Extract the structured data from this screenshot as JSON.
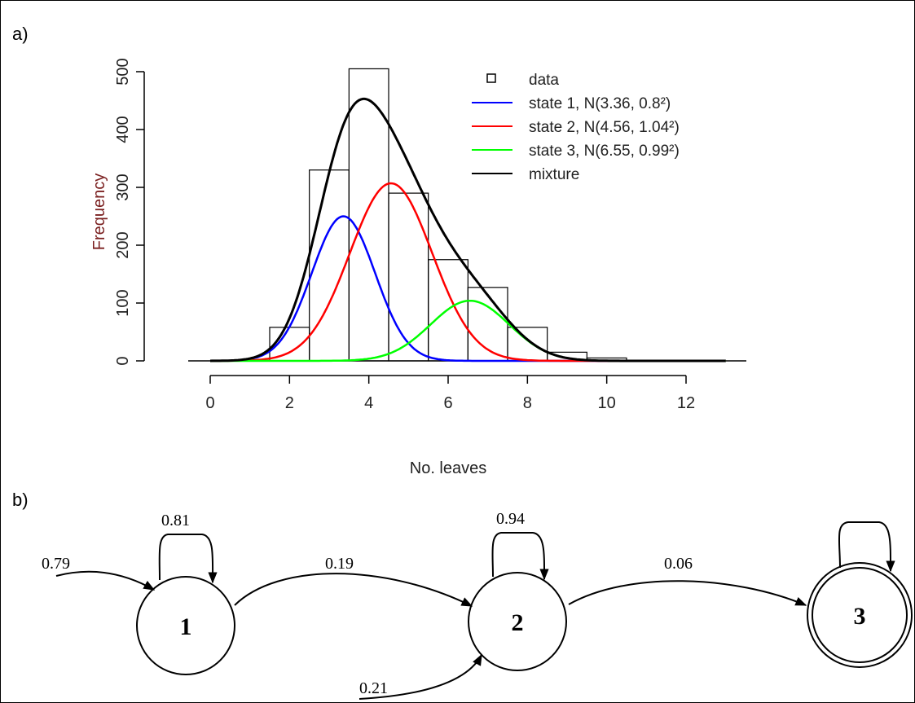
{
  "panels": {
    "a_label": "a)",
    "b_label": "b)"
  },
  "chart_data": {
    "type": "bar",
    "histogram": {
      "bins": [
        [
          1.5,
          2.5
        ],
        [
          2.5,
          3.5
        ],
        [
          3.5,
          4.5
        ],
        [
          4.5,
          5.5
        ],
        [
          5.5,
          6.5
        ],
        [
          6.5,
          7.5
        ],
        [
          7.5,
          8.5
        ],
        [
          8.5,
          9.5
        ],
        [
          9.5,
          10.5
        ]
      ],
      "values": [
        58,
        330,
        505,
        290,
        175,
        127,
        58,
        15,
        5
      ]
    },
    "series": [
      {
        "name": "state 1, N(3.36, 0.8²)",
        "color": "#0000ff",
        "mean": 3.36,
        "sd": 0.8,
        "peak": 250
      },
      {
        "name": "state 2, N(4.56, 1.04²)",
        "color": "#ff0000",
        "mean": 4.56,
        "sd": 1.04,
        "peak": 307
      },
      {
        "name": "state 3, N(6.55, 0.99²)",
        "color": "#00ff00",
        "mean": 6.55,
        "sd": 0.99,
        "peak": 104
      },
      {
        "name": "mixture",
        "color": "#000000"
      }
    ],
    "legend": {
      "data_label": "data",
      "placement": "top-right"
    },
    "xlabel": "No. leaves",
    "ylabel": "Frequency",
    "xlim": [
      0,
      13
    ],
    "ylim": [
      0,
      510
    ],
    "xticks": [
      "0",
      "2",
      "4",
      "6",
      "8",
      "10",
      "12"
    ],
    "yticks": [
      "0",
      "100",
      "200",
      "300",
      "400",
      "500"
    ],
    "grid": false
  },
  "diagram": {
    "states": [
      {
        "id": "1",
        "label": "1"
      },
      {
        "id": "2",
        "label": "2"
      },
      {
        "id": "3",
        "label": "3",
        "final": true
      }
    ],
    "transitions": [
      {
        "from": "start",
        "to": "1",
        "label": "0.79"
      },
      {
        "from": "1",
        "to": "1",
        "label": "0.81"
      },
      {
        "from": "1",
        "to": "2",
        "label": "0.19"
      },
      {
        "from": "start",
        "to": "2",
        "label": "0.21"
      },
      {
        "from": "2",
        "to": "2",
        "label": "0.94"
      },
      {
        "from": "2",
        "to": "3",
        "label": "0.06"
      },
      {
        "from": "3",
        "to": "3",
        "label": ""
      }
    ]
  }
}
